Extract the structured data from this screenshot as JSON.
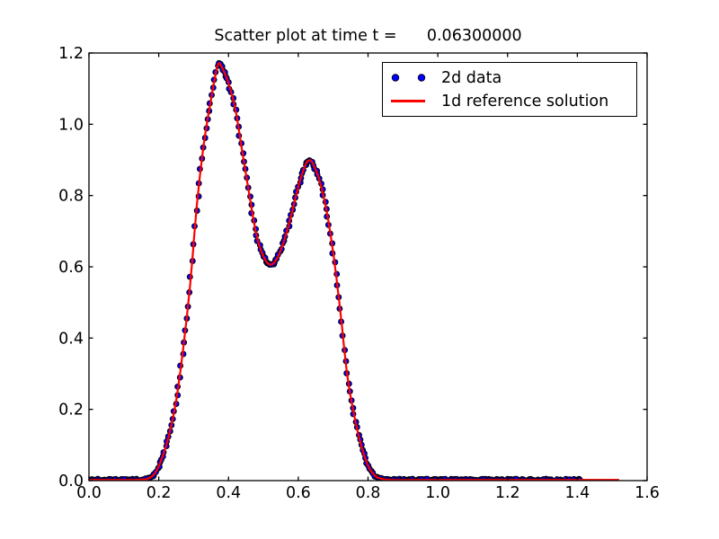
{
  "figure": {
    "background": "#ffffff",
    "frame_color": "#000000"
  },
  "chart_data": {
    "type": "scatter",
    "title": "Scatter plot at time t =      0.06300000",
    "time_value": "0.06300000",
    "xlabel": "",
    "ylabel": "",
    "xlim": [
      0.0,
      1.6
    ],
    "ylim": [
      0.0,
      1.2
    ],
    "grid": false,
    "x_ticks": [
      "0.0",
      "0.2",
      "0.4",
      "0.6",
      "0.8",
      "1.0",
      "1.2",
      "1.4",
      "1.6"
    ],
    "y_ticks": [
      "0.0",
      "0.2",
      "0.4",
      "0.6",
      "0.8",
      "1.0",
      "1.2"
    ],
    "legend": {
      "position": "upper right",
      "entries": [
        {
          "label": "2d data",
          "type": "scatter",
          "color": "#0000ff",
          "edge_color": "#000000"
        },
        {
          "label": "1d reference solution",
          "type": "line",
          "color": "#ff0000"
        }
      ]
    },
    "reference_curve": {
      "name": "1d reference solution",
      "color": "#ff0000",
      "line_width": 2.2,
      "x_range": [
        0.0,
        1.52
      ],
      "x": [
        0.0,
        0.06,
        0.12,
        0.15,
        0.17,
        0.19,
        0.21,
        0.23,
        0.25,
        0.27,
        0.29,
        0.31,
        0.33,
        0.35,
        0.36,
        0.37,
        0.38,
        0.4,
        0.42,
        0.44,
        0.46,
        0.48,
        0.5,
        0.52,
        0.54,
        0.56,
        0.58,
        0.6,
        0.62,
        0.63,
        0.64,
        0.66,
        0.68,
        0.7,
        0.72,
        0.74,
        0.76,
        0.78,
        0.8,
        0.82,
        0.84,
        0.87,
        0.95,
        1.05,
        1.15,
        1.25,
        1.35,
        1.41,
        1.46,
        1.52
      ],
      "y": [
        0.002,
        0.002,
        0.002,
        0.003,
        0.006,
        0.022,
        0.065,
        0.13,
        0.225,
        0.37,
        0.55,
        0.78,
        0.95,
        1.07,
        1.125,
        1.168,
        1.162,
        1.115,
        1.04,
        0.92,
        0.8,
        0.69,
        0.63,
        0.606,
        0.625,
        0.675,
        0.745,
        0.825,
        0.885,
        0.898,
        0.893,
        0.845,
        0.762,
        0.64,
        0.48,
        0.3,
        0.185,
        0.1,
        0.042,
        0.014,
        0.005,
        0.002,
        0.002,
        0.002,
        0.002,
        0.002,
        0.002,
        0.002,
        0.002,
        0.002
      ],
      "peaks": [
        {
          "x": 0.37,
          "y": 1.17
        },
        {
          "x": 0.63,
          "y": 0.9
        }
      ],
      "valley": {
        "x": 0.52,
        "y": 0.61
      }
    },
    "scatter_series": {
      "name": "2d data",
      "color": "#0000ff",
      "edge_color": "#000000",
      "marker_radius": 3.0,
      "x_range": [
        0.0,
        1.408
      ],
      "x_spacing": 0.004,
      "follows": "reference_curve"
    }
  }
}
